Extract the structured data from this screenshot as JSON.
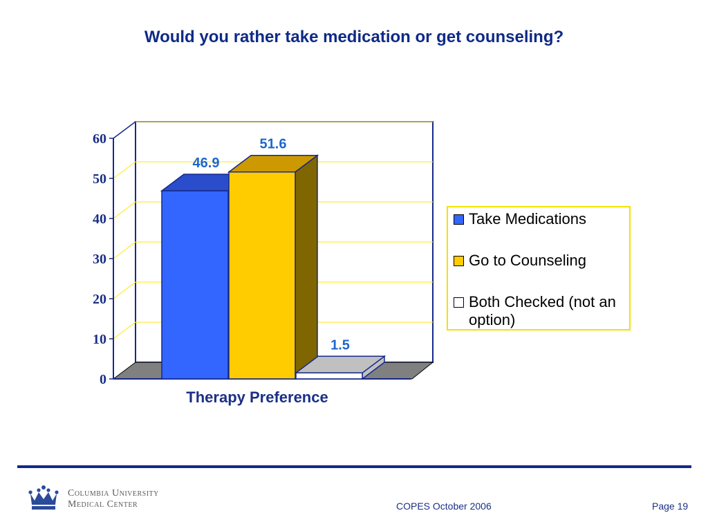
{
  "slide": {
    "title": "Would you rather take medication or get counseling?"
  },
  "chart_data": {
    "type": "bar",
    "style": "3d-clustered-column",
    "categories": [
      "Therapy Preference"
    ],
    "xlabel": "Therapy Preference",
    "ylabel": "",
    "ylim": [
      0,
      60
    ],
    "yticks": [
      0,
      10,
      20,
      30,
      40,
      50,
      60
    ],
    "ytick_labels": [
      "0",
      "10",
      "20",
      "30",
      "40",
      "50",
      "60"
    ],
    "grid": true,
    "legend_position": "right",
    "series": [
      {
        "name": "Take Medications",
        "values": [
          46.9
        ],
        "label": "46.9",
        "color": "#3366ff",
        "top_color": "#2a4dcc",
        "side_color": "#1f3aa6"
      },
      {
        "name": "Go to Counseling",
        "values": [
          51.6
        ],
        "label": "51.6",
        "color": "#ffcc00",
        "top_color": "#cc9900",
        "side_color": "#806600"
      },
      {
        "name": "Both Checked (not an option)",
        "values": [
          1.5
        ],
        "label": "1.5",
        "color": "#ffffff",
        "top_color": "#c0c0c0",
        "side_color": "#c0c0c0"
      }
    ],
    "colors": {
      "wall": "#ffffff",
      "floor": "#808080",
      "grid": "#ffee33",
      "axis": "#14288a",
      "label": "#1f66cc"
    }
  },
  "footer": {
    "org_line1": "Columbia University",
    "org_line2": "Medical Center",
    "center_text": "COPES October 2006",
    "page_text": "Page 19",
    "rule_color": "#14288a"
  }
}
